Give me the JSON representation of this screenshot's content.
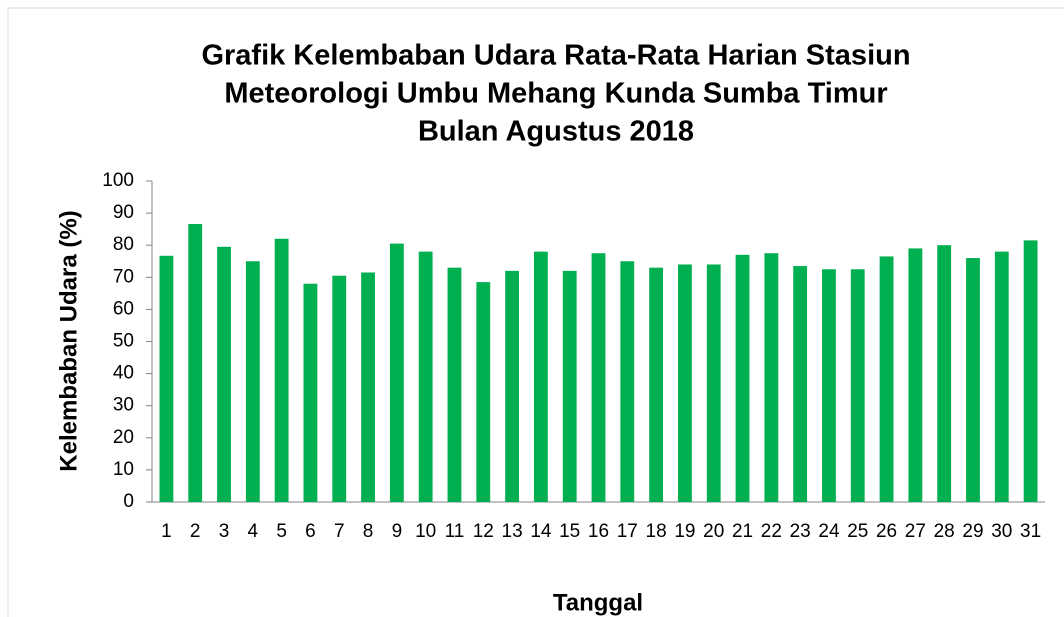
{
  "chart_data": {
    "type": "bar",
    "title": [
      "Grafik  Kelembaban Udara Rata-Rata Harian Stasiun",
      "Meteorologi Umbu Mehang Kunda Sumba Timur",
      "Bulan Agustus 2018"
    ],
    "x_label": "Tanggal",
    "y_label": "Kelembaban Udara (%)",
    "categories": [
      "1",
      "2",
      "3",
      "4",
      "5",
      "6",
      "7",
      "8",
      "9",
      "10",
      "11",
      "12",
      "13",
      "14",
      "15",
      "16",
      "17",
      "18",
      "19",
      "20",
      "21",
      "22",
      "23",
      "24",
      "25",
      "26",
      "27",
      "28",
      "29",
      "30",
      "31"
    ],
    "values": [
      76.7,
      86.6,
      79.5,
      75,
      82,
      68,
      70.5,
      71.5,
      80.5,
      78,
      73,
      68.5,
      72,
      78,
      72,
      77.5,
      75,
      73,
      74,
      74,
      77,
      77.5,
      73.5,
      72.5,
      72.5,
      76.5,
      79,
      80,
      76,
      78,
      81.5
    ],
    "color": "#00b050",
    "ylim": [
      0,
      100
    ],
    "yticks": [
      0,
      10,
      20,
      30,
      40,
      50,
      60,
      70,
      80,
      90,
      100
    ],
    "grid": false
  }
}
